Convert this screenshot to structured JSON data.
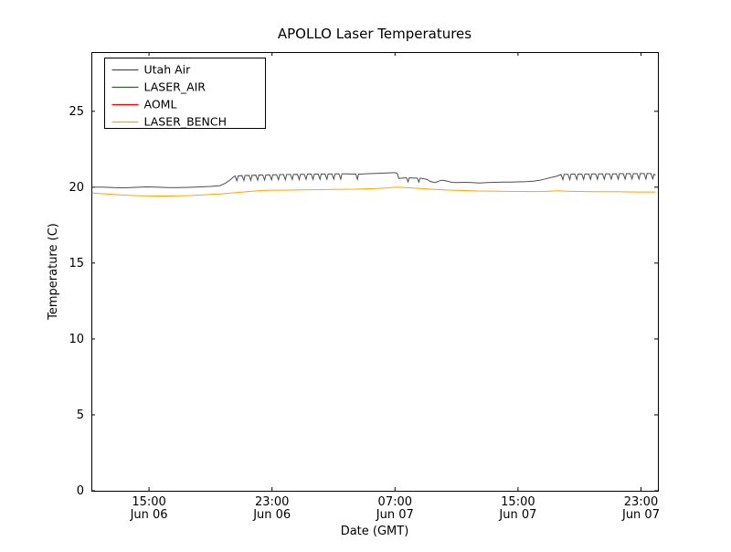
{
  "figure": {
    "background": "#ffffff",
    "axis_color": "#000000"
  },
  "chart_data": {
    "type": "line",
    "title": "APOLLO Laser Temperatures",
    "xlabel": "Date (GMT)",
    "ylabel": "Temperature (C)",
    "x_unit": "hours since Jun 06 00:00 GMT",
    "xlim": [
      11.25,
      48.1
    ],
    "ylim": [
      0,
      28.9
    ],
    "grid": false,
    "legend_position": "upper left",
    "yticks": [
      {
        "value": 0,
        "label": "0"
      },
      {
        "value": 5,
        "label": "5"
      },
      {
        "value": 10,
        "label": "10"
      },
      {
        "value": 15,
        "label": "15"
      },
      {
        "value": 20,
        "label": "20"
      },
      {
        "value": 25,
        "label": "25"
      }
    ],
    "xticks": [
      {
        "value": 15,
        "time": "15:00",
        "date": "Jun 06"
      },
      {
        "value": 23,
        "time": "23:00",
        "date": "Jun 06"
      },
      {
        "value": 31,
        "time": "07:00",
        "date": "Jun 07"
      },
      {
        "value": 39,
        "time": "15:00",
        "date": "Jun 07"
      },
      {
        "value": 47,
        "time": "23:00",
        "date": "Jun 07"
      }
    ],
    "series": [
      {
        "name": "Utah Air",
        "color": "#4d4d4d",
        "points": [
          [
            11.3,
            20.0
          ],
          [
            12.0,
            20.0
          ],
          [
            12.7,
            19.97
          ],
          [
            13.4,
            19.96
          ],
          [
            14.1,
            19.99
          ],
          [
            14.8,
            20.02
          ],
          [
            15.5,
            20.01
          ],
          [
            16.2,
            19.98
          ],
          [
            16.9,
            19.97
          ],
          [
            17.6,
            19.99
          ],
          [
            18.3,
            20.02
          ],
          [
            19.0,
            20.05
          ],
          [
            19.6,
            20.1
          ],
          [
            20.0,
            20.28
          ],
          [
            20.3,
            20.5
          ],
          [
            20.5,
            20.68
          ],
          [
            20.6,
            20.74
          ],
          [
            20.72,
            20.42
          ],
          [
            20.8,
            20.75
          ],
          [
            21.05,
            20.76
          ],
          [
            21.17,
            20.44
          ],
          [
            21.25,
            20.77
          ],
          [
            21.5,
            20.78
          ],
          [
            21.62,
            20.45
          ],
          [
            21.7,
            20.78
          ],
          [
            21.95,
            20.79
          ],
          [
            22.07,
            20.46
          ],
          [
            22.15,
            20.8
          ],
          [
            22.4,
            20.8
          ],
          [
            22.52,
            20.47
          ],
          [
            22.6,
            20.81
          ],
          [
            22.85,
            20.81
          ],
          [
            22.97,
            20.48
          ],
          [
            23.05,
            20.82
          ],
          [
            23.3,
            20.82
          ],
          [
            23.42,
            20.48
          ],
          [
            23.5,
            20.83
          ],
          [
            23.75,
            20.83
          ],
          [
            23.87,
            20.49
          ],
          [
            23.95,
            20.84
          ],
          [
            24.2,
            20.84
          ],
          [
            24.32,
            20.5
          ],
          [
            24.4,
            20.84
          ],
          [
            24.65,
            20.85
          ],
          [
            24.77,
            20.5
          ],
          [
            24.85,
            20.85
          ],
          [
            25.1,
            20.85
          ],
          [
            25.22,
            20.51
          ],
          [
            25.3,
            20.86
          ],
          [
            25.55,
            20.86
          ],
          [
            25.67,
            20.51
          ],
          [
            25.75,
            20.86
          ],
          [
            26.0,
            20.86
          ],
          [
            26.12,
            20.52
          ],
          [
            26.2,
            20.87
          ],
          [
            26.45,
            20.87
          ],
          [
            26.57,
            20.52
          ],
          [
            26.65,
            20.87
          ],
          [
            26.9,
            20.87
          ],
          [
            27.02,
            20.53
          ],
          [
            27.1,
            20.88
          ],
          [
            27.35,
            20.88
          ],
          [
            27.47,
            20.53
          ],
          [
            27.55,
            20.88
          ],
          [
            27.9,
            20.88
          ],
          [
            28.2,
            20.86
          ],
          [
            28.45,
            20.86
          ],
          [
            28.55,
            20.52
          ],
          [
            28.63,
            20.86
          ],
          [
            28.9,
            20.87
          ],
          [
            29.3,
            20.89
          ],
          [
            29.8,
            20.91
          ],
          [
            30.3,
            20.93
          ],
          [
            30.8,
            20.95
          ],
          [
            31.05,
            20.95
          ],
          [
            31.15,
            20.9
          ],
          [
            31.25,
            20.58
          ],
          [
            31.5,
            20.6
          ],
          [
            31.75,
            20.62
          ],
          [
            31.85,
            20.35
          ],
          [
            31.93,
            20.62
          ],
          [
            32.2,
            20.6
          ],
          [
            32.45,
            20.6
          ],
          [
            32.55,
            20.34
          ],
          [
            32.63,
            20.6
          ],
          [
            32.9,
            20.55
          ],
          [
            33.1,
            20.5
          ],
          [
            33.3,
            20.38
          ],
          [
            33.6,
            20.3
          ],
          [
            33.9,
            20.42
          ],
          [
            34.1,
            20.45
          ],
          [
            34.4,
            20.4
          ],
          [
            34.7,
            20.32
          ],
          [
            35.0,
            20.3
          ],
          [
            35.5,
            20.32
          ],
          [
            36.0,
            20.3
          ],
          [
            36.5,
            20.28
          ],
          [
            37.0,
            20.3
          ],
          [
            37.5,
            20.32
          ],
          [
            38.0,
            20.33
          ],
          [
            38.5,
            20.33
          ],
          [
            39.0,
            20.35
          ],
          [
            39.5,
            20.37
          ],
          [
            40.0,
            20.4
          ],
          [
            40.4,
            20.45
          ],
          [
            40.8,
            20.55
          ],
          [
            41.2,
            20.65
          ],
          [
            41.5,
            20.72
          ],
          [
            41.8,
            20.84
          ],
          [
            41.92,
            20.5
          ],
          [
            42.0,
            20.85
          ],
          [
            42.25,
            20.85
          ],
          [
            42.37,
            20.5
          ],
          [
            42.45,
            20.86
          ],
          [
            42.7,
            20.86
          ],
          [
            42.82,
            20.51
          ],
          [
            42.9,
            20.86
          ],
          [
            43.15,
            20.86
          ],
          [
            43.27,
            20.51
          ],
          [
            43.35,
            20.87
          ],
          [
            43.6,
            20.87
          ],
          [
            43.72,
            20.52
          ],
          [
            43.8,
            20.87
          ],
          [
            44.05,
            20.87
          ],
          [
            44.17,
            20.52
          ],
          [
            44.25,
            20.88
          ],
          [
            44.5,
            20.88
          ],
          [
            44.62,
            20.52
          ],
          [
            44.7,
            20.88
          ],
          [
            44.95,
            20.88
          ],
          [
            45.07,
            20.53
          ],
          [
            45.15,
            20.88
          ],
          [
            45.4,
            20.88
          ],
          [
            45.52,
            20.53
          ],
          [
            45.6,
            20.89
          ],
          [
            45.85,
            20.89
          ],
          [
            45.97,
            20.53
          ],
          [
            46.05,
            20.89
          ],
          [
            46.3,
            20.89
          ],
          [
            46.42,
            20.54
          ],
          [
            46.5,
            20.89
          ],
          [
            46.75,
            20.89
          ],
          [
            46.87,
            20.54
          ],
          [
            46.95,
            20.9
          ],
          [
            47.2,
            20.9
          ],
          [
            47.32,
            20.54
          ],
          [
            47.4,
            20.9
          ],
          [
            47.65,
            20.9
          ],
          [
            47.77,
            20.55
          ],
          [
            47.85,
            20.85
          ],
          [
            47.95,
            20.8
          ]
        ]
      },
      {
        "name": "LASER_AIR",
        "color": "#008000",
        "points": []
      },
      {
        "name": "AOML",
        "color": "#ff0000",
        "points": []
      },
      {
        "name": "LASER_BENCH",
        "color": "#ffa500",
        "points": [
          [
            11.3,
            19.62
          ],
          [
            12.0,
            19.57
          ],
          [
            12.7,
            19.52
          ],
          [
            13.4,
            19.48
          ],
          [
            14.1,
            19.45
          ],
          [
            14.8,
            19.43
          ],
          [
            15.5,
            19.42
          ],
          [
            16.2,
            19.42
          ],
          [
            16.9,
            19.43
          ],
          [
            17.6,
            19.45
          ],
          [
            18.3,
            19.48
          ],
          [
            19.0,
            19.52
          ],
          [
            19.7,
            19.56
          ],
          [
            20.4,
            19.62
          ],
          [
            21.1,
            19.68
          ],
          [
            21.8,
            19.74
          ],
          [
            22.3,
            19.78
          ],
          [
            22.8,
            19.8
          ],
          [
            23.5,
            19.8
          ],
          [
            24.2,
            19.81
          ],
          [
            24.9,
            19.82
          ],
          [
            25.6,
            19.83
          ],
          [
            26.3,
            19.84
          ],
          [
            27.0,
            19.85
          ],
          [
            27.7,
            19.86
          ],
          [
            28.4,
            19.87
          ],
          [
            29.1,
            19.89
          ],
          [
            29.8,
            19.91
          ],
          [
            30.4,
            19.95
          ],
          [
            30.9,
            19.99
          ],
          [
            31.2,
            20.0
          ],
          [
            31.6,
            19.98
          ],
          [
            32.0,
            19.96
          ],
          [
            32.5,
            19.92
          ],
          [
            33.0,
            19.89
          ],
          [
            33.5,
            19.86
          ],
          [
            34.0,
            19.83
          ],
          [
            34.5,
            19.81
          ],
          [
            35.0,
            19.79
          ],
          [
            35.7,
            19.77
          ],
          [
            36.4,
            19.75
          ],
          [
            37.1,
            19.74
          ],
          [
            37.8,
            19.73
          ],
          [
            38.5,
            19.72
          ],
          [
            39.2,
            19.72
          ],
          [
            39.9,
            19.71
          ],
          [
            40.6,
            19.72
          ],
          [
            41.2,
            19.74
          ],
          [
            41.6,
            19.76
          ],
          [
            42.0,
            19.74
          ],
          [
            42.7,
            19.72
          ],
          [
            43.4,
            19.71
          ],
          [
            44.1,
            19.7
          ],
          [
            44.8,
            19.7
          ],
          [
            45.5,
            19.7
          ],
          [
            46.2,
            19.69
          ],
          [
            46.9,
            19.68
          ],
          [
            47.95,
            19.68
          ]
        ]
      }
    ]
  }
}
